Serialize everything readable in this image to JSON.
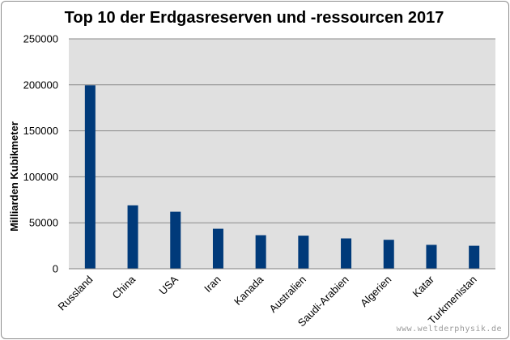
{
  "chart_data": {
    "type": "bar",
    "title": "Top 10 der Erdgasreserven und -ressourcen 2017",
    "xlabel": "",
    "ylabel": "Milliarden Kubikmeter",
    "ylim": [
      0,
      250000
    ],
    "yticks": [
      "0",
      "50000",
      "100000",
      "150000",
      "200000",
      "250000"
    ],
    "categories": [
      "Russland",
      "China",
      "USA",
      "Iran",
      "Kanada",
      "Australien",
      "Saudi-Arabien",
      "Algerien",
      "Katar",
      "Turkmenistan"
    ],
    "values": [
      199500,
      69000,
      62000,
      43500,
      36500,
      36000,
      33000,
      31500,
      26000,
      25000
    ],
    "grid": true,
    "legend": "none",
    "bar_color": "#003a7a",
    "plot_background": "#e0e0e0",
    "gridline_color": "#8a8a8a"
  },
  "watermark": "www.weltderphysik.de"
}
